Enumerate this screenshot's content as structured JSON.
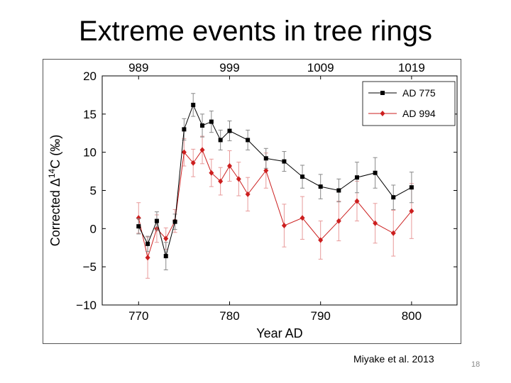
{
  "slide": {
    "title": "Extreme events in tree rings",
    "citation": "Miyake et al. 2013",
    "slide_number": "18"
  },
  "colors": {
    "ad775": "#000000",
    "ad994": "#cc1f1f",
    "ad994_error": "#e89a9a",
    "ad775_error": "#888888"
  },
  "chart_data": {
    "type": "line",
    "title": "",
    "xlabel": "Year AD",
    "ylabel_prefix": "Corrected Δ",
    "ylabel_sup": "14",
    "ylabel_suffix": "C (‰)",
    "xlim": [
      766,
      805
    ],
    "ylim": [
      -10,
      20
    ],
    "x_ticks": [
      770,
      780,
      790,
      800
    ],
    "x_tick_labels": [
      "770",
      "780",
      "790",
      "800"
    ],
    "y_ticks": [
      -10,
      -5,
      0,
      5,
      10,
      15,
      20
    ],
    "y_tick_labels": [
      "−10",
      "−5",
      "0",
      "5",
      "10",
      "15",
      "20"
    ],
    "top_axis_ticks": [
      989,
      999,
      1009,
      1019
    ],
    "top_axis_labels": [
      "989",
      "999",
      "1009",
      "1019"
    ],
    "top_axis_offset": 219,
    "legend_position": "top-right",
    "series": [
      {
        "name": "AD 775",
        "color": "#000000",
        "error_color": "#888888",
        "marker": "square",
        "x": [
          770,
          771,
          772,
          773,
          774,
          775,
          776,
          777,
          778,
          779,
          780,
          782,
          784,
          786,
          788,
          790,
          792,
          794,
          796,
          798,
          800
        ],
        "y": [
          0.3,
          -2.0,
          1.0,
          -3.6,
          0.9,
          13.0,
          16.2,
          13.5,
          14.0,
          11.6,
          12.8,
          11.6,
          9.2,
          8.8,
          6.8,
          5.5,
          5.0,
          6.7,
          7.3,
          4.1,
          5.4
        ],
        "err": [
          1.0,
          1.0,
          1.2,
          1.8,
          1.0,
          1.4,
          1.5,
          1.5,
          1.4,
          1.3,
          1.3,
          1.3,
          1.3,
          1.3,
          1.5,
          1.6,
          1.5,
          2.0,
          2.0,
          1.6,
          2.0
        ]
      },
      {
        "name": "AD 994",
        "color": "#cc1f1f",
        "error_color": "#e89a9a",
        "marker": "diamond",
        "x": [
          770,
          771,
          772,
          773,
          774,
          775,
          776,
          777,
          778,
          779,
          780,
          781,
          782,
          784,
          786,
          788,
          790,
          792,
          794,
          796,
          798,
          800
        ],
        "y": [
          1.4,
          -3.8,
          0.0,
          -1.3,
          1.0,
          10.0,
          8.6,
          10.3,
          7.3,
          6.2,
          8.2,
          6.5,
          4.5,
          7.6,
          0.4,
          1.4,
          -1.5,
          1.0,
          3.6,
          0.7,
          -0.6,
          2.3
        ],
        "err": [
          2.0,
          2.7,
          1.8,
          1.4,
          1.5,
          1.8,
          1.8,
          1.8,
          1.8,
          1.8,
          2.0,
          2.2,
          2.2,
          2.3,
          2.8,
          2.8,
          2.5,
          2.6,
          2.6,
          2.6,
          3.0,
          3.6
        ]
      }
    ]
  }
}
